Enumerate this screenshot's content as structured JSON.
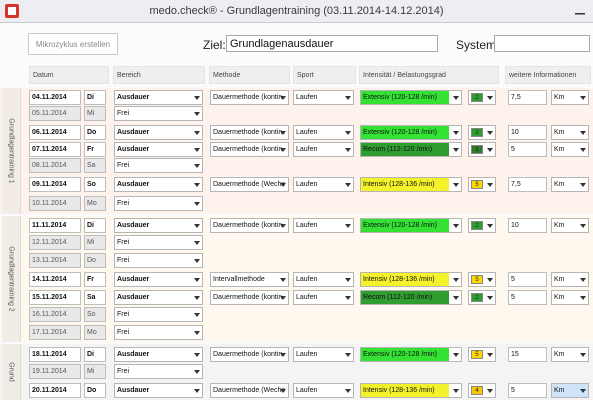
{
  "window": {
    "title": "medo.check® - Grundlagentraining (03.11.2014-14.12.2014)"
  },
  "toolbar": {
    "mikro_button": "Mikrozyklus erstellen",
    "ziel_label": "Ziel:",
    "ziel_value": "Grundlagenausdauer",
    "system_label": "System:",
    "system_value": ""
  },
  "headers": {
    "datum": "Datum",
    "bereich": "Bereich",
    "methode": "Methode",
    "sport": "Sport",
    "intensitaet": "Intensität / Belastungsgrad",
    "weitere": "weitere Informationen"
  },
  "blocks": [
    {
      "label": "Grundlagentraining 1"
    },
    {
      "label": "Grundlagentraining 2"
    },
    {
      "label": "Grund"
    }
  ],
  "colors": {
    "extensiv": "#33e233",
    "intensiv": "#f4f22a",
    "recom": "#2f9d2f",
    "lvl_green": "#2e9e2e",
    "lvl_dark": "#2b7a2b",
    "lvl_yellow": "#ffd700",
    "lvl_orange": "#f7c600",
    "block_bg_a": "#fdf2ec",
    "block_bg_b": "#fff8ef",
    "block_bg_c": "#f7f7f7"
  },
  "rows": [
    {
      "date": "04.11.2014",
      "day": "Di",
      "bereich": "Ausdauer",
      "methode": "Dauermethode (kontin",
      "sport": "Laufen",
      "intensitaet": "Extensiv (120-128 /min)",
      "level": "2",
      "info": "7,5",
      "unit": "Km",
      "active": true
    },
    {
      "date": "05.11.2014",
      "day": "Mi",
      "bereich": "Frei",
      "active": false
    },
    {
      "date": "06.11.2014",
      "day": "Do",
      "bereich": "Ausdauer",
      "methode": "Dauermethode (kontin",
      "sport": "Laufen",
      "intensitaet": "Extensiv (120-128 /min)",
      "level": "2",
      "info": "10",
      "unit": "Km",
      "active": true
    },
    {
      "date": "07.11.2014",
      "day": "Fr",
      "bereich": "Ausdauer",
      "methode": "Dauermethode (kontin",
      "sport": "Laufen",
      "intensitaet": "Recom (112-120 /min)",
      "level": "1",
      "info": "5",
      "unit": "Km",
      "active": true
    },
    {
      "date": "08.11.2014",
      "day": "Sa",
      "bereich": "Frei",
      "active": false
    },
    {
      "date": "09.11.2014",
      "day": "So",
      "bereich": "Ausdauer",
      "methode": "Dauermethode (Wechs",
      "sport": "Laufen",
      "intensitaet": "Intensiv (128-136 /min)",
      "level": "5",
      "info": "7,5",
      "unit": "Km",
      "active": true
    },
    {
      "date": "10.11.2014",
      "day": "Mo",
      "bereich": "Frei",
      "active": false
    },
    {
      "date": "11.11.2014",
      "day": "Di",
      "bereich": "Ausdauer",
      "methode": "Dauermethode (kontin",
      "sport": "Laufen",
      "intensitaet": "Extensiv (120-128 /min)",
      "level": "2",
      "info": "10",
      "unit": "Km",
      "active": true
    },
    {
      "date": "12.11.2014",
      "day": "Mi",
      "bereich": "Frei",
      "active": false
    },
    {
      "date": "13.11.2014",
      "day": "Do",
      "bereich": "Frei",
      "active": false
    },
    {
      "date": "14.11.2014",
      "day": "Fr",
      "bereich": "Ausdauer",
      "methode": "Intervallmethode",
      "sport": "Laufen",
      "intensitaet": "Intensiv (128-136 /min)",
      "level": "5",
      "info": "5",
      "unit": "Km",
      "active": true
    },
    {
      "date": "15.11.2014",
      "day": "Sa",
      "bereich": "Ausdauer",
      "methode": "Dauermethode (kontin",
      "sport": "Laufen",
      "intensitaet": "Recom (112-120 /min)",
      "level": "2",
      "info": "5",
      "unit": "Km",
      "active": true
    },
    {
      "date": "16.11.2014",
      "day": "So",
      "bereich": "Frei",
      "active": false
    },
    {
      "date": "17.11.2014",
      "day": "Mo",
      "bereich": "Frei",
      "active": false
    },
    {
      "date": "18.11.2014",
      "day": "Di",
      "bereich": "Ausdauer",
      "methode": "Dauermethode (kontin",
      "sport": "Laufen",
      "intensitaet": "Extensiv (120-128 /min)",
      "level": "5",
      "info": "15",
      "unit": "Km",
      "active": true
    },
    {
      "date": "19.11.2014",
      "day": "Mi",
      "bereich": "Frei",
      "active": false
    },
    {
      "date": "20.11.2014",
      "day": "Do",
      "bereich": "Ausdauer",
      "methode": "Dauermethode (Wechs",
      "sport": "Laufen",
      "intensitaet": "Intensiv (128-136 /min)",
      "level": "4",
      "info": "5",
      "unit": "Km",
      "active": true
    }
  ]
}
